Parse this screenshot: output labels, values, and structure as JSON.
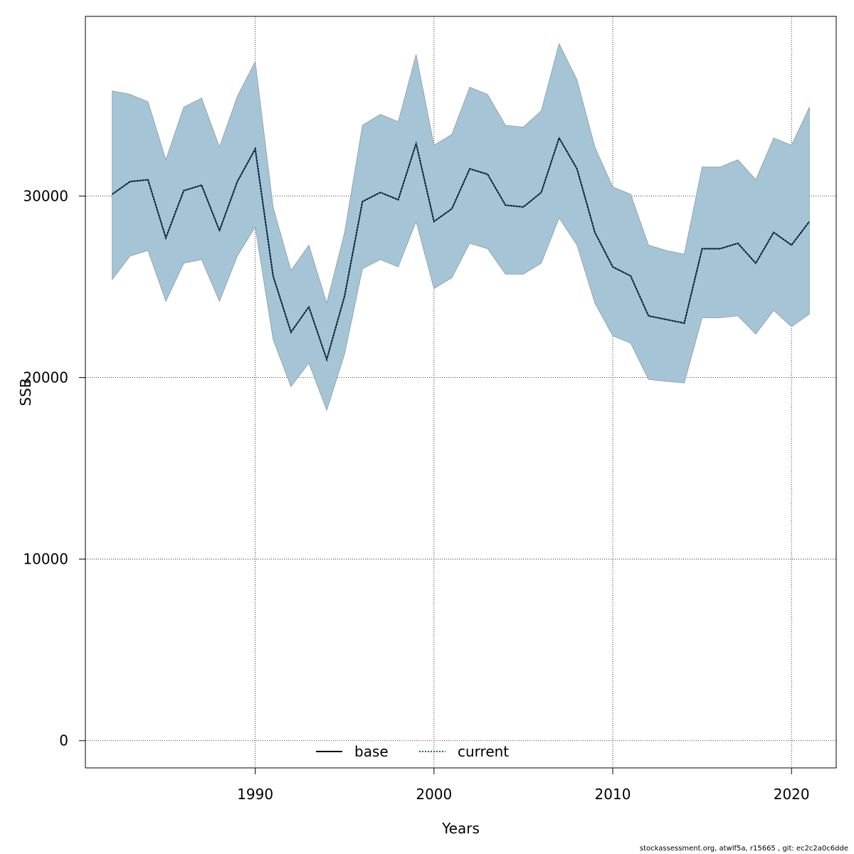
{
  "chart_data": {
    "type": "area",
    "xlabel": "Years",
    "ylabel": "SSB",
    "xlim": [
      1980.5,
      2022.5
    ],
    "ylim": [
      -1500,
      39900
    ],
    "x_ticks": [
      1990,
      2000,
      2010,
      2020
    ],
    "y_ticks": [
      0,
      10000,
      20000,
      30000
    ],
    "grid": true,
    "legend_position": "bottom-center",
    "legend": [
      {
        "label": "base",
        "style": "solid"
      },
      {
        "label": "current",
        "style": "dotted"
      }
    ],
    "colors": {
      "band_fill": "#a5c5d6",
      "band_edge": "#8a9aa2",
      "base_line": "#000000",
      "current_line": "#1f5f8a"
    },
    "x": [
      1982,
      1983,
      1984,
      1985,
      1986,
      1987,
      1988,
      1989,
      1990,
      1991,
      1992,
      1993,
      1994,
      1995,
      1996,
      1997,
      1998,
      1999,
      2000,
      2001,
      2002,
      2003,
      2004,
      2005,
      2006,
      2007,
      2008,
      2009,
      2010,
      2011,
      2012,
      2013,
      2014,
      2015,
      2016,
      2017,
      2018,
      2019,
      2020,
      2021
    ],
    "series": [
      {
        "name": "base",
        "values": [
          30100,
          30800,
          30900,
          27700,
          30300,
          30600,
          28100,
          30800,
          32600,
          25600,
          22500,
          23900,
          21000,
          24500,
          29700,
          30200,
          29800,
          32900,
          28600,
          29300,
          31500,
          31200,
          29500,
          29400,
          30200,
          33200,
          31500,
          28000,
          26100,
          25600,
          23400,
          23200,
          23000,
          27100,
          27100,
          27400,
          26300,
          28000,
          27300,
          28600
        ]
      },
      {
        "name": "current",
        "values": [
          30100,
          30800,
          30900,
          27700,
          30300,
          30600,
          28100,
          30800,
          32600,
          25600,
          22500,
          23900,
          21000,
          24500,
          29700,
          30200,
          29800,
          32900,
          28600,
          29300,
          31500,
          31200,
          29500,
          29400,
          30200,
          33200,
          31500,
          28000,
          26100,
          25600,
          23400,
          23200,
          23000,
          27100,
          27100,
          27400,
          26300,
          28000,
          27300,
          28600
        ]
      }
    ],
    "confidence_band": {
      "lower": [
        25400,
        26700,
        27000,
        24200,
        26300,
        26500,
        24200,
        26700,
        28300,
        22100,
        19500,
        20800,
        18200,
        21300,
        26000,
        26500,
        26100,
        28600,
        24900,
        25500,
        27400,
        27100,
        25700,
        25700,
        26300,
        28800,
        27300,
        24100,
        22300,
        21900,
        19900,
        19800,
        19700,
        23300,
        23300,
        23400,
        22400,
        23700,
        22800,
        23500
      ],
      "upper": [
        35800,
        35600,
        35200,
        32000,
        34900,
        35400,
        32700,
        35500,
        37400,
        29400,
        25900,
        27300,
        24100,
        28000,
        33900,
        34500,
        34100,
        37800,
        32800,
        33400,
        36000,
        35600,
        33900,
        33800,
        34700,
        38400,
        36400,
        32700,
        30500,
        30100,
        27300,
        27000,
        26800,
        31600,
        31600,
        32000,
        30900,
        33200,
        32800,
        34900
      ]
    }
  },
  "footer": "stockassessment.org, atwlf5a, r15665 , git: ec2c2a0c6dde"
}
